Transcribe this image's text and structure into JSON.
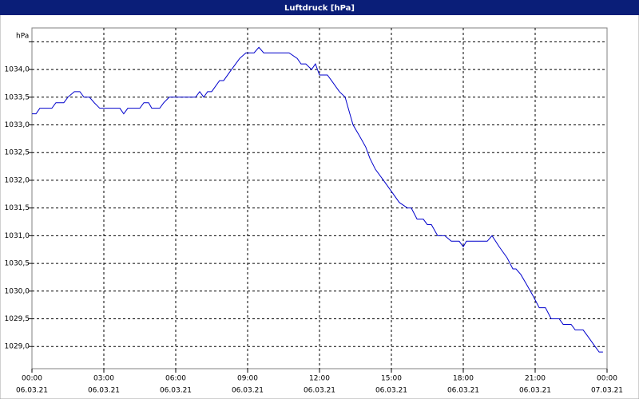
{
  "chart_data": {
    "type": "line",
    "title": "Luftdruck [hPa]",
    "y_label": "hPa",
    "x": [
      0,
      0.17,
      0.33,
      0.83,
      1,
      1.33,
      1.5,
      1.77,
      2,
      2.17,
      2.4,
      2.6,
      2.83,
      3.67,
      3.83,
      4,
      4.5,
      4.67,
      4.87,
      5,
      5.33,
      5.5,
      5.73,
      6.83,
      7,
      7.17,
      7.33,
      7.5,
      7.83,
      8,
      8.33,
      8.67,
      8.93,
      9.27,
      9.47,
      9.67,
      10.73,
      11.07,
      11.23,
      11.43,
      11.67,
      11.83,
      12,
      12.33,
      12.5,
      12.83,
      13.07,
      13.2,
      13.4,
      13.67,
      13.93,
      14.1,
      14.33,
      14.67,
      15,
      15.33,
      15.67,
      15.83,
      16.07,
      16.33,
      16.5,
      16.67,
      16.93,
      17.23,
      17.5,
      17.83,
      18,
      18.13,
      19,
      19.2,
      19.5,
      19.83,
      20.07,
      20.2,
      20.4,
      20.67,
      20.93,
      21.17,
      21.43,
      21.67,
      22,
      22.17,
      22.5,
      22.67,
      23,
      23.17,
      23.5,
      23.67,
      23.83
    ],
    "series": [
      {
        "name": "Luftdruck",
        "color": "#0000cc",
        "values": [
          1033.2,
          1033.2,
          1033.3,
          1033.3,
          1033.4,
          1033.4,
          1033.5,
          1033.6,
          1033.6,
          1033.5,
          1033.5,
          1033.4,
          1033.3,
          1033.3,
          1033.2,
          1033.3,
          1033.3,
          1033.4,
          1033.4,
          1033.3,
          1033.3,
          1033.4,
          1033.5,
          1033.5,
          1033.6,
          1033.5,
          1033.6,
          1033.6,
          1033.8,
          1033.8,
          1034.0,
          1034.2,
          1034.3,
          1034.3,
          1034.4,
          1034.3,
          1034.3,
          1034.2,
          1034.1,
          1034.1,
          1034.0,
          1034.1,
          1033.9,
          1033.9,
          1033.8,
          1033.6,
          1033.5,
          1033.3,
          1033.0,
          1032.8,
          1032.6,
          1032.4,
          1032.2,
          1032.0,
          1031.8,
          1031.6,
          1031.5,
          1031.5,
          1031.3,
          1031.3,
          1031.2,
          1031.2,
          1031.0,
          1031.0,
          1030.9,
          1030.9,
          1030.8,
          1030.9,
          1030.9,
          1031.0,
          1030.8,
          1030.6,
          1030.4,
          1030.4,
          1030.3,
          1030.1,
          1029.9,
          1029.7,
          1029.7,
          1029.5,
          1029.5,
          1029.4,
          1029.4,
          1029.3,
          1029.3,
          1029.2,
          1029.0,
          1028.9,
          1028.9
        ]
      }
    ],
    "xlim": [
      0,
      24
    ],
    "xticks": [
      {
        "value": 0,
        "label": "00:00",
        "date": "06.03.21"
      },
      {
        "value": 3,
        "label": "03:00",
        "date": "06.03.21"
      },
      {
        "value": 6,
        "label": "06:00",
        "date": "06.03.21"
      },
      {
        "value": 9,
        "label": "09:00",
        "date": "06.03.21"
      },
      {
        "value": 12,
        "label": "12:00",
        "date": "06.03.21"
      },
      {
        "value": 15,
        "label": "15:00",
        "date": "06.03.21"
      },
      {
        "value": 18,
        "label": "18:00",
        "date": "06.03.21"
      },
      {
        "value": 21,
        "label": "21:00",
        "date": "06.03.21"
      },
      {
        "value": 24,
        "label": "00:00",
        "date": "07.03.21"
      }
    ],
    "ylim": [
      1028.6,
      1034.75
    ],
    "yticks": [
      {
        "value": 1029.0,
        "label": "1029,0"
      },
      {
        "value": 1029.5,
        "label": "1029,5"
      },
      {
        "value": 1030.0,
        "label": "1030,0"
      },
      {
        "value": 1030.5,
        "label": "1030,5"
      },
      {
        "value": 1031.0,
        "label": "1031,0"
      },
      {
        "value": 1031.5,
        "label": "1031,5"
      },
      {
        "value": 1032.0,
        "label": "1032,0"
      },
      {
        "value": 1032.5,
        "label": "1032,5"
      },
      {
        "value": 1033.0,
        "label": "1033,0"
      },
      {
        "value": 1033.5,
        "label": "1033,5"
      },
      {
        "value": 1034.0,
        "label": "1034,0"
      },
      {
        "value": 1034.5,
        "label": null
      }
    ],
    "grid": true
  }
}
